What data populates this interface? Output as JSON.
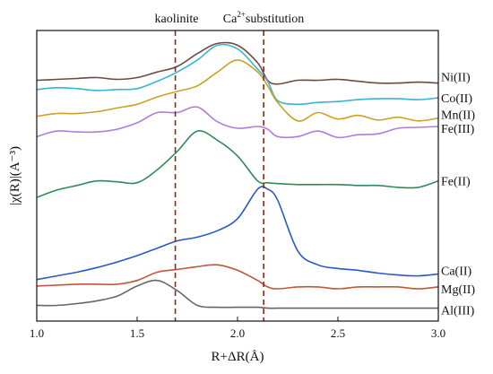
{
  "chart_data": {
    "type": "line",
    "title": "",
    "xlabel": "R+ΔR(Å)",
    "ylabel": "|χ(R)|(A⁻³)",
    "xlim": [
      1.0,
      3.0
    ],
    "x_ticks": [
      "1.0",
      "1.5",
      "2.0",
      "2.5",
      "3.0"
    ],
    "y_ticks_shown": false,
    "grid": false,
    "legend": "none (series labels placed at right end of each curve)",
    "reference_lines": [
      {
        "x": 1.69,
        "label": "kaolinite",
        "style": "dashed",
        "color": "#8B2A10"
      },
      {
        "x": 2.13,
        "label_prefix": "Ca",
        "label_sup": "2+",
        "label_suffix": "substitution",
        "style": "dashed",
        "color": "#8B2A10"
      }
    ],
    "x": [
      1.0,
      1.1,
      1.2,
      1.3,
      1.4,
      1.5,
      1.6,
      1.7,
      1.8,
      1.9,
      2.0,
      2.1,
      2.15,
      2.2,
      2.3,
      2.4,
      2.5,
      2.6,
      2.7,
      2.8,
      2.9,
      3.0
    ],
    "series": [
      {
        "name": "Ni(II)",
        "color": "#6E4A3C",
        "values": [
          0.06,
          0.07,
          0.08,
          0.09,
          0.07,
          0.09,
          0.15,
          0.21,
          0.35,
          0.46,
          0.44,
          0.25,
          0.06,
          0.02,
          0.06,
          0.06,
          0.07,
          0.05,
          0.03,
          0.03,
          0.04,
          0.03
        ]
      },
      {
        "name": "Co(II)",
        "color": "#3BB2D6",
        "values": [
          -0.04,
          -0.02,
          -0.03,
          -0.05,
          -0.04,
          -0.03,
          0.05,
          0.15,
          0.28,
          0.44,
          0.4,
          0.18,
          0.05,
          -0.16,
          -0.2,
          -0.18,
          -0.17,
          -0.15,
          -0.14,
          -0.14,
          -0.15,
          -0.13
        ]
      },
      {
        "name": "Mn(II)",
        "color": "#C9A227",
        "values": [
          -0.33,
          -0.3,
          -0.3,
          -0.28,
          -0.24,
          -0.2,
          -0.12,
          -0.06,
          0.0,
          0.15,
          0.28,
          0.15,
          0.0,
          -0.18,
          -0.38,
          -0.29,
          -0.36,
          -0.32,
          -0.37,
          -0.34,
          -0.38,
          -0.35
        ]
      },
      {
        "name": "Fe(III)",
        "color": "#B27BD8",
        "values": [
          -0.55,
          -0.49,
          -0.5,
          -0.5,
          -0.47,
          -0.4,
          -0.29,
          -0.29,
          -0.23,
          -0.39,
          -0.46,
          -0.44,
          -0.47,
          -0.55,
          -0.55,
          -0.49,
          -0.56,
          -0.53,
          -0.52,
          -0.46,
          -0.45,
          -0.44
        ]
      },
      {
        "name": "Fe(II)",
        "color": "#2E8B57",
        "values": [
          -1.21,
          -1.13,
          -1.08,
          -1.03,
          -1.04,
          -1.05,
          -0.91,
          -0.71,
          -0.49,
          -0.59,
          -0.76,
          -1.03,
          -1.05,
          -1.06,
          -1.07,
          -1.07,
          -1.07,
          -1.08,
          -1.08,
          -1.1,
          -1.1,
          -1.03
        ]
      },
      {
        "name": "Ca(II)",
        "color": "#2857C8",
        "values": [
          -2.1,
          -2.06,
          -2.02,
          -1.97,
          -1.91,
          -1.84,
          -1.76,
          -1.68,
          -1.64,
          -1.57,
          -1.44,
          -1.12,
          -1.12,
          -1.24,
          -1.79,
          -1.94,
          -1.98,
          -2.0,
          -2.03,
          -2.05,
          -2.06,
          -2.04
        ]
      },
      {
        "name": "Mg(II)",
        "color": "#C2553A",
        "values": [
          -2.17,
          -2.16,
          -2.15,
          -2.15,
          -2.15,
          -2.11,
          -2.02,
          -1.99,
          -1.96,
          -1.94,
          -2.0,
          -2.11,
          -2.18,
          -2.2,
          -2.18,
          -2.18,
          -2.2,
          -2.18,
          -2.18,
          -2.18,
          -2.2,
          -2.18
        ]
      },
      {
        "name": "Al(III)",
        "color": "#666666",
        "values": [
          -2.38,
          -2.38,
          -2.36,
          -2.33,
          -2.28,
          -2.17,
          -2.11,
          -2.22,
          -2.38,
          -2.4,
          -2.4,
          -2.4,
          -2.41,
          -2.41,
          -2.41,
          -2.41,
          -2.41,
          -2.41,
          -2.41,
          -2.41,
          -2.41,
          -2.41
        ]
      }
    ],
    "ylim": [
      -2.55,
      0.6
    ]
  }
}
